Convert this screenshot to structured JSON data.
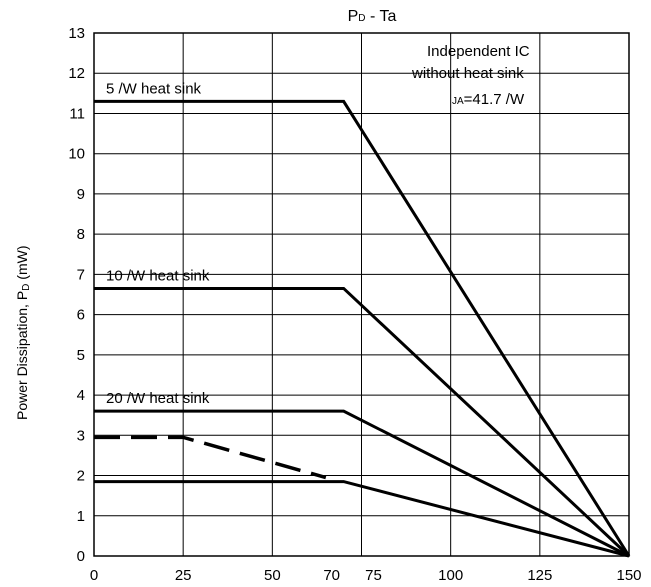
{
  "chart_data": {
    "type": "line",
    "title": "PD - Ta",
    "title_main": "P",
    "title_sub": "D",
    "title_rest": " - Ta",
    "ylabel": "Power Dissipation,  PD (mW)",
    "xlabel": "",
    "xlim": [
      0,
      150
    ],
    "ylim": [
      0,
      13
    ],
    "grid": true,
    "x_ticks": [
      0,
      25,
      50,
      70,
      75,
      100,
      125,
      150
    ],
    "x_tick_labels": [
      "0",
      "25",
      "50",
      "70",
      "75",
      "100",
      "125",
      "150"
    ],
    "y_ticks": [
      0,
      1,
      2,
      3,
      4,
      5,
      6,
      7,
      8,
      9,
      10,
      11,
      12,
      13
    ],
    "series": [
      {
        "key": "hs5",
        "label": "5    /W heat sink",
        "style": "solid",
        "x": [
          0,
          70,
          150
        ],
        "y": [
          11.3,
          11.3,
          0
        ]
      },
      {
        "key": "hs10",
        "label": "10    /W heat sink",
        "style": "solid",
        "x": [
          0,
          70,
          150
        ],
        "y": [
          6.65,
          6.65,
          0
        ]
      },
      {
        "key": "hs20",
        "label": "20    /W heat sink",
        "style": "solid",
        "x": [
          0,
          70,
          150
        ],
        "y": [
          3.6,
          3.6,
          0
        ]
      },
      {
        "key": "noheatsink",
        "label": "",
        "style": "solid",
        "x": [
          0,
          70,
          150
        ],
        "y": [
          1.85,
          1.85,
          0
        ]
      },
      {
        "key": "dashed",
        "label": "",
        "style": "dashed",
        "x": [
          0,
          25,
          65
        ],
        "y": [
          2.95,
          2.95,
          1.95
        ]
      }
    ],
    "annotation": {
      "line1": "Independent IC",
      "line2": "without heat sink",
      "line3_sub": "JA",
      "line3": "=41.7     /W"
    }
  }
}
